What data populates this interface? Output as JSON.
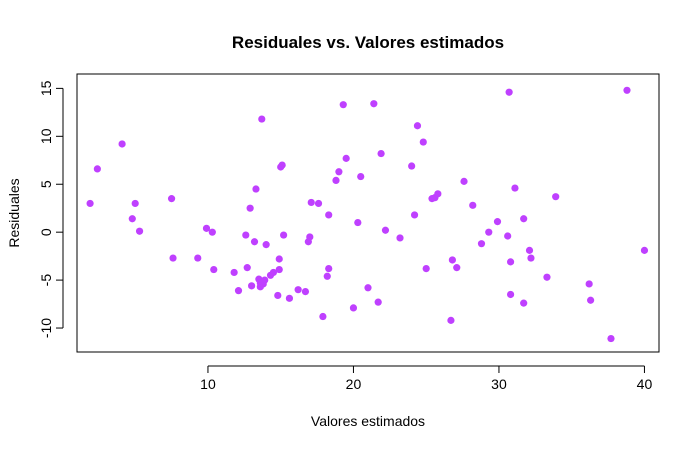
{
  "chart_data": {
    "type": "scatter",
    "title": "Residuales vs. Valores estimados",
    "xlabel": "Valores estimados",
    "ylabel": "Residuales",
    "xlim": [
      1.0,
      41.0
    ],
    "ylim": [
      -12.5,
      16.5
    ],
    "xticks": [
      10,
      20,
      30,
      40
    ],
    "yticks": [
      -10,
      -5,
      0,
      5,
      10,
      15
    ],
    "grid": false,
    "point_color": "#BF40FF",
    "series": [
      {
        "name": "Residuales",
        "x": [
          1.9,
          2.4,
          4.1,
          4.8,
          5.0,
          5.3,
          7.5,
          7.6,
          9.3,
          9.9,
          10.3,
          10.4,
          11.8,
          12.1,
          12.6,
          12.7,
          12.9,
          13.0,
          13.2,
          13.3,
          13.5,
          13.6,
          13.6,
          13.7,
          13.8,
          13.9,
          14.0,
          14.3,
          14.5,
          14.8,
          14.9,
          14.9,
          15.0,
          15.1,
          15.2,
          15.6,
          16.2,
          16.7,
          16.9,
          17.0,
          17.1,
          17.6,
          17.9,
          18.2,
          18.3,
          18.3,
          18.8,
          19.0,
          19.3,
          19.5,
          20.0,
          20.3,
          20.5,
          21.0,
          21.4,
          21.7,
          21.9,
          22.2,
          23.2,
          24.0,
          24.2,
          24.4,
          24.8,
          25.0,
          25.4,
          25.6,
          25.8,
          26.7,
          26.8,
          27.1,
          27.6,
          28.2,
          28.8,
          29.3,
          29.9,
          30.6,
          30.7,
          30.8,
          30.8,
          31.1,
          31.7,
          31.7,
          32.1,
          32.2,
          33.3,
          33.9,
          36.2,
          36.3,
          37.7,
          38.8,
          40.0
        ],
        "y": [
          3.0,
          6.6,
          9.2,
          1.4,
          3.0,
          0.1,
          3.5,
          -2.7,
          -2.7,
          0.4,
          0.0,
          -3.9,
          -4.2,
          -6.1,
          -0.3,
          -3.7,
          2.5,
          -5.6,
          -1.0,
          4.5,
          -4.9,
          -5.7,
          -5.3,
          11.8,
          -5.4,
          -5.0,
          -1.3,
          -4.5,
          -4.2,
          -6.6,
          -2.8,
          -3.9,
          6.8,
          7.0,
          -0.3,
          -6.9,
          -6.0,
          -6.2,
          -1.0,
          -0.5,
          3.1,
          3.0,
          -8.8,
          -4.6,
          -3.8,
          1.8,
          5.4,
          6.3,
          13.3,
          7.7,
          -7.9,
          1.0,
          5.8,
          -5.8,
          13.4,
          -7.3,
          8.2,
          0.2,
          -0.6,
          6.9,
          1.8,
          11.1,
          9.4,
          -3.8,
          3.5,
          3.6,
          4.0,
          -9.2,
          -2.9,
          -3.7,
          5.3,
          2.8,
          -1.2,
          0.0,
          1.1,
          -0.4,
          14.6,
          -3.1,
          -6.5,
          4.6,
          1.4,
          -7.4,
          -1.9,
          -2.7,
          -4.7,
          3.7,
          -5.4,
          -7.1,
          -11.1,
          14.8,
          -1.9
        ]
      }
    ]
  }
}
